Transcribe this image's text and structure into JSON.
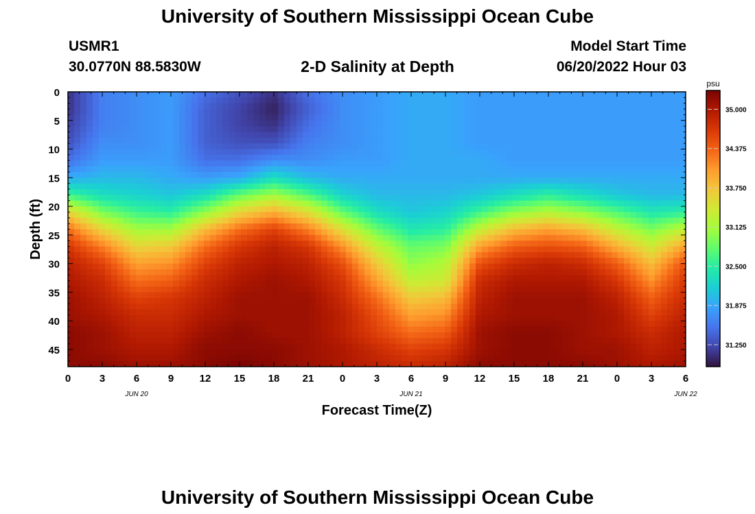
{
  "page": {
    "title": "University of Southern Mississippi Ocean Cube",
    "station_id": "USMR1",
    "station_coords": "30.0770N  88.5830W",
    "plot_title": "2-D Salinity at Depth",
    "model_start_label": "Model Start Time",
    "model_start_value": "06/20/2022 Hour 03",
    "footer_title": "University of Southern Mississippi Ocean Cube"
  },
  "chart_data": {
    "type": "heatmap",
    "title": "2-D Salinity at Depth",
    "xlabel": "Forecast Time(Z)",
    "ylabel": "Depth (ft)",
    "x_tick_labels": [
      "0",
      "3",
      "6",
      "9",
      "12",
      "15",
      "18",
      "21",
      "0",
      "3",
      "6",
      "9",
      "12",
      "15",
      "18",
      "21",
      "0",
      "3",
      "6"
    ],
    "x_date_labels": [
      {
        "label": "JUN 20",
        "hour": 6
      },
      {
        "label": "JUN 21",
        "hour": 30
      },
      {
        "label": "JUN 22",
        "hour": 54
      }
    ],
    "xlim_hours": [
      0,
      54
    ],
    "y_tick_labels": [
      "0",
      "5",
      "10",
      "15",
      "20",
      "25",
      "30",
      "35",
      "40",
      "45"
    ],
    "ylim": [
      0,
      48
    ],
    "y_inverted": true,
    "colorbar": {
      "unit": "psu",
      "vmin": 30.9,
      "vmax": 35.3,
      "tick_labels": [
        "35.000",
        "34.375",
        "33.750",
        "33.125",
        "32.500",
        "31.875",
        "31.250"
      ],
      "colors": [
        "#30123b",
        "#4145ab",
        "#4675ed",
        "#39a2fc",
        "#1bcfd4",
        "#24eca6",
        "#61fc6c",
        "#a4fc3b",
        "#d1e834",
        "#f3c63a",
        "#fe9b2d",
        "#f36315",
        "#d93806",
        "#b11901",
        "#7a0403"
      ]
    },
    "times_hours": [
      0,
      3,
      6,
      9,
      12,
      15,
      18,
      21,
      24,
      27,
      30,
      33,
      36,
      39,
      42,
      45,
      48,
      51,
      54
    ],
    "depths_ft": [
      0,
      3,
      6,
      9,
      12,
      15,
      18,
      21,
      24,
      27,
      30,
      33,
      36,
      39,
      42,
      45,
      48
    ],
    "salinity_psu": [
      [
        31.1,
        31.6,
        31.7,
        31.8,
        31.5,
        31.3,
        31.1,
        31.5,
        31.7,
        31.8,
        31.9,
        31.9,
        31.8,
        31.8,
        31.8,
        31.8,
        31.8,
        31.8,
        31.8
      ],
      [
        31.1,
        31.6,
        31.7,
        31.8,
        31.4,
        31.2,
        31.0,
        31.4,
        31.7,
        31.8,
        31.9,
        31.9,
        31.8,
        31.8,
        31.8,
        31.8,
        31.8,
        31.8,
        31.8
      ],
      [
        31.2,
        31.6,
        31.7,
        31.8,
        31.4,
        31.2,
        31.1,
        31.5,
        31.7,
        31.8,
        31.9,
        31.9,
        31.8,
        31.8,
        31.8,
        31.8,
        31.8,
        31.8,
        31.8
      ],
      [
        31.3,
        31.7,
        31.7,
        31.8,
        31.4,
        31.3,
        31.3,
        31.6,
        31.7,
        31.8,
        31.9,
        31.9,
        31.8,
        31.8,
        31.8,
        31.8,
        31.8,
        31.8,
        31.8
      ],
      [
        31.5,
        31.8,
        31.8,
        31.8,
        31.5,
        31.5,
        31.7,
        31.7,
        31.8,
        31.8,
        31.9,
        31.9,
        31.9,
        31.8,
        31.8,
        31.8,
        31.8,
        31.8,
        31.8
      ],
      [
        31.9,
        32.0,
        32.0,
        31.9,
        31.8,
        31.9,
        32.3,
        32.0,
        31.9,
        31.9,
        31.9,
        31.9,
        31.9,
        31.9,
        31.9,
        31.9,
        31.9,
        31.9,
        31.9
      ],
      [
        32.6,
        32.3,
        32.2,
        32.1,
        32.3,
        32.8,
        33.1,
        32.7,
        32.2,
        32.0,
        32.0,
        32.0,
        32.1,
        32.3,
        32.5,
        32.3,
        32.1,
        32.0,
        32.0
      ],
      [
        33.6,
        32.9,
        32.6,
        32.5,
        33.0,
        33.6,
        33.9,
        33.5,
        32.8,
        32.3,
        32.1,
        32.2,
        32.6,
        33.0,
        33.2,
        33.0,
        32.7,
        32.4,
        32.5
      ],
      [
        34.3,
        33.6,
        33.1,
        33.1,
        33.8,
        34.3,
        34.6,
        34.2,
        33.5,
        32.8,
        32.4,
        32.5,
        33.3,
        33.8,
        34.0,
        33.8,
        33.3,
        32.9,
        33.3
      ],
      [
        34.7,
        34.2,
        33.6,
        33.7,
        34.3,
        34.7,
        34.9,
        34.7,
        34.1,
        33.3,
        32.8,
        32.9,
        34.0,
        34.4,
        34.5,
        34.4,
        33.9,
        33.4,
        34.0
      ],
      [
        34.9,
        34.6,
        34.0,
        34.1,
        34.6,
        34.9,
        35.0,
        34.9,
        34.5,
        33.7,
        33.0,
        33.2,
        34.5,
        34.8,
        34.9,
        34.8,
        34.4,
        33.8,
        34.5
      ],
      [
        35.0,
        34.8,
        34.3,
        34.4,
        34.8,
        35.0,
        35.1,
        35.0,
        34.7,
        34.0,
        33.3,
        33.4,
        34.8,
        35.0,
        35.0,
        35.0,
        34.7,
        34.1,
        34.7
      ],
      [
        35.1,
        34.9,
        34.6,
        34.7,
        34.9,
        35.1,
        35.1,
        35.1,
        34.8,
        34.3,
        33.7,
        33.8,
        34.9,
        35.1,
        35.1,
        35.1,
        34.9,
        34.4,
        34.8
      ],
      [
        35.1,
        35.0,
        34.8,
        34.8,
        35.0,
        35.1,
        35.1,
        35.1,
        34.9,
        34.5,
        34.0,
        34.1,
        35.0,
        35.1,
        35.1,
        35.1,
        35.0,
        34.6,
        34.9
      ],
      [
        35.2,
        35.1,
        34.9,
        34.9,
        35.1,
        35.2,
        35.1,
        35.1,
        34.9,
        34.6,
        34.3,
        34.4,
        35.1,
        35.2,
        35.2,
        35.1,
        35.0,
        34.8,
        35.0
      ],
      [
        35.2,
        35.1,
        35.0,
        35.0,
        35.2,
        35.2,
        35.2,
        35.1,
        35.0,
        34.8,
        34.6,
        34.7,
        35.1,
        35.2,
        35.2,
        35.1,
        35.1,
        34.9,
        35.0
      ],
      [
        35.2,
        35.2,
        35.1,
        35.1,
        35.2,
        35.3,
        35.2,
        35.1,
        35.0,
        34.9,
        34.8,
        34.9,
        35.2,
        35.2,
        35.2,
        35.2,
        35.1,
        35.0,
        35.1
      ]
    ]
  }
}
